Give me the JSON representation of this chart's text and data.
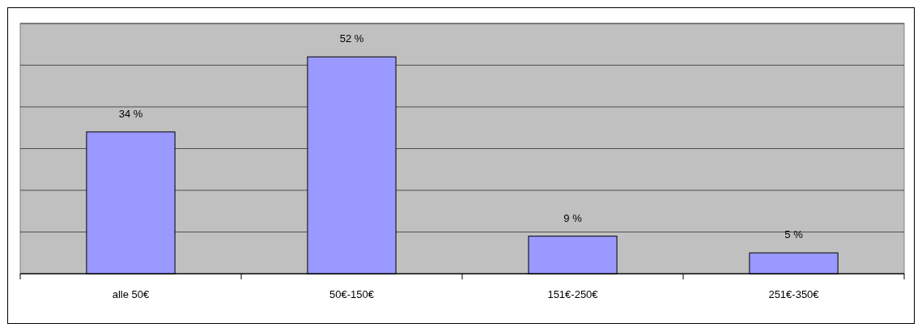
{
  "chart_data": {
    "type": "bar",
    "categories": [
      "alle 50€",
      "50€-150€",
      "151€-250€",
      "251€-350€"
    ],
    "values": [
      34,
      52,
      9,
      5
    ],
    "color": "#9999ff",
    "value_labels": [
      "34 %",
      "52 %",
      "9 %",
      "5 %"
    ],
    "ylim": [
      0,
      60
    ],
    "yticks": [
      {
        "value": 0,
        "label": null
      },
      {
        "value": 10,
        "label": null
      },
      {
        "value": 20,
        "label": null
      },
      {
        "value": 30,
        "label": null
      },
      {
        "value": 40,
        "label": null
      },
      {
        "value": 50,
        "label": null
      },
      {
        "value": 60,
        "label": null
      }
    ],
    "grid": "y",
    "tick_labels": "x"
  }
}
